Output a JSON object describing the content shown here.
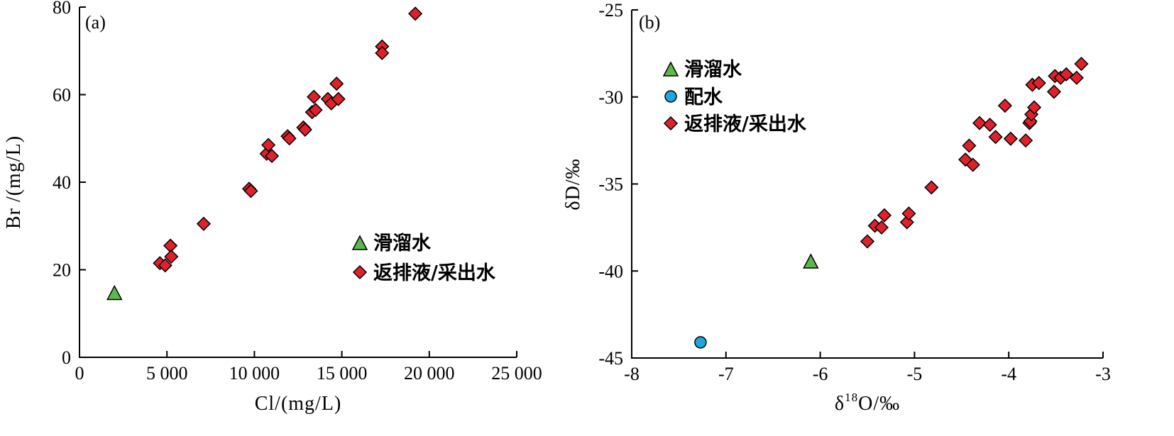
{
  "chart_data": [
    {
      "type": "scatter",
      "panel_label": "(a)",
      "xlabel": "Cl/(mg/L)",
      "ylabel": "Br /(mg/L)",
      "xlim": [
        0,
        25000
      ],
      "ylim": [
        0,
        80
      ],
      "x_ticks": [
        0,
        5000,
        10000,
        15000,
        20000,
        25000
      ],
      "x_tick_labels": [
        "0",
        "5 000",
        "10 000",
        "15 000",
        "20 000",
        "25 000"
      ],
      "y_ticks": [
        0,
        20,
        40,
        60,
        80
      ],
      "y_tick_labels": [
        "0",
        "20",
        "40",
        "60",
        "80"
      ],
      "legend_position": "center-right",
      "series": [
        {
          "name": "滑溜水",
          "marker": "triangle",
          "color": "#5cb84a",
          "points": [
            [
              2000,
              14.5
            ]
          ]
        },
        {
          "name": "返排液/采出水",
          "marker": "diamond",
          "color": "#e0212b",
          "points": [
            [
              4600,
              21.5
            ],
            [
              4900,
              21
            ],
            [
              5200,
              25.5
            ],
            [
              5250,
              23
            ],
            [
              7100,
              30.5
            ],
            [
              9700,
              38.5
            ],
            [
              9800,
              38
            ],
            [
              10700,
              46.5
            ],
            [
              10800,
              48.5
            ],
            [
              11000,
              46
            ],
            [
              11900,
              50.5
            ],
            [
              12000,
              50
            ],
            [
              12800,
              52.5
            ],
            [
              12900,
              52
            ],
            [
              13300,
              56
            ],
            [
              13400,
              59.5
            ],
            [
              13500,
              56.5
            ],
            [
              14200,
              59
            ],
            [
              14400,
              58
            ],
            [
              14700,
              62.5
            ],
            [
              14800,
              59
            ],
            [
              17300,
              71
            ],
            [
              17300,
              69.5
            ],
            [
              19200,
              78.5
            ]
          ]
        }
      ]
    },
    {
      "type": "scatter",
      "panel_label": "(b)",
      "xlabel_prefix": "δ",
      "xlabel_sup": "18",
      "xlabel_suffix": "O/‰",
      "ylabel": "δD/‰",
      "xlim": [
        -8,
        -3
      ],
      "ylim": [
        -45,
        -25
      ],
      "x_ticks": [
        -8,
        -7,
        -6,
        -5,
        -4,
        -3
      ],
      "x_tick_labels": [
        "-8",
        "-7",
        "-6",
        "-5",
        "-4",
        "-3"
      ],
      "y_ticks": [
        -45,
        -40,
        -35,
        -30,
        -25
      ],
      "y_tick_labels": [
        "-45",
        "-40",
        "-35",
        "-30",
        "-25"
      ],
      "legend_position": "top-left",
      "series": [
        {
          "name": "滑溜水",
          "marker": "triangle",
          "color": "#5cb84a",
          "points": [
            [
              -6.1,
              -39.5
            ]
          ]
        },
        {
          "name": "配水",
          "marker": "circle",
          "color": "#1fa6dc",
          "points": [
            [
              -7.27,
              -44.1
            ]
          ]
        },
        {
          "name": "返排液/采出水",
          "marker": "diamond",
          "color": "#e0212b",
          "points": [
            [
              -5.5,
              -38.3
            ],
            [
              -5.42,
              -37.4
            ],
            [
              -5.35,
              -37.5
            ],
            [
              -5.32,
              -36.8
            ],
            [
              -5.08,
              -37.2
            ],
            [
              -5.06,
              -36.7
            ],
            [
              -4.82,
              -35.2
            ],
            [
              -4.46,
              -33.6
            ],
            [
              -4.42,
              -32.8
            ],
            [
              -4.38,
              -33.9
            ],
            [
              -4.31,
              -31.5
            ],
            [
              -4.2,
              -31.6
            ],
            [
              -4.14,
              -32.3
            ],
            [
              -4.04,
              -30.5
            ],
            [
              -3.98,
              -32.4
            ],
            [
              -3.82,
              -32.5
            ],
            [
              -3.78,
              -31.5
            ],
            [
              -3.77,
              -31.4
            ],
            [
              -3.76,
              -31
            ],
            [
              -3.75,
              -29.3
            ],
            [
              -3.73,
              -30.6
            ],
            [
              -3.68,
              -29.2
            ],
            [
              -3.52,
              -29.7
            ],
            [
              -3.51,
              -28.8
            ],
            [
              -3.45,
              -28.9
            ],
            [
              -3.39,
              -28.7
            ],
            [
              -3.28,
              -28.9
            ],
            [
              -3.23,
              -28.1
            ]
          ]
        }
      ]
    }
  ]
}
